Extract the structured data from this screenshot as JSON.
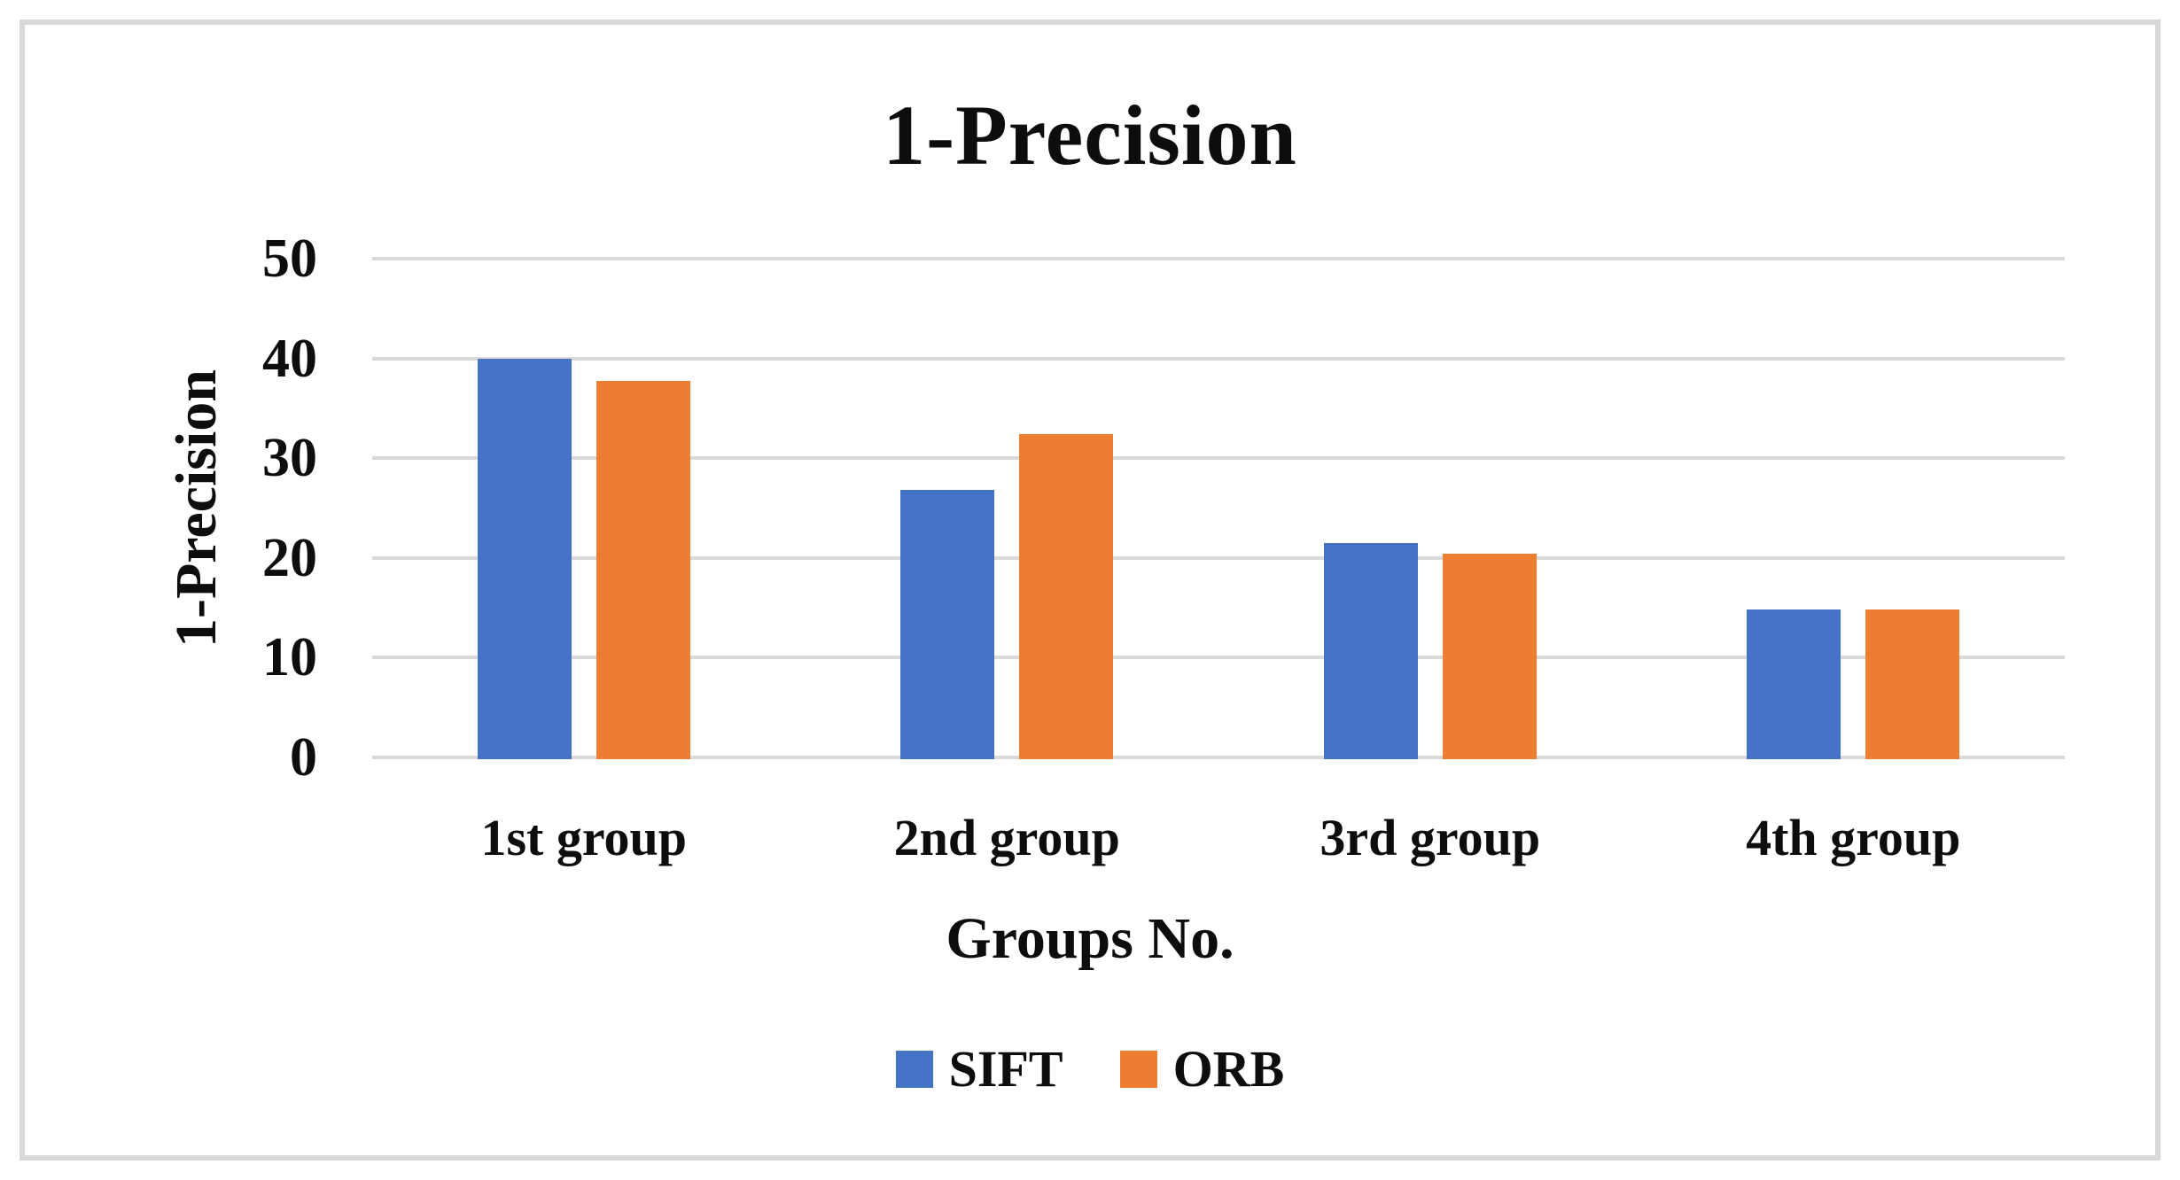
{
  "figure": {
    "border_color": "#d9d9d9",
    "background": "#ffffff"
  },
  "chart_data": {
    "type": "bar",
    "title": "1-Precision",
    "xlabel": "Groups No.",
    "ylabel": "1-Precision",
    "categories": [
      "1st group",
      "2nd group",
      "3rd group",
      "4th group"
    ],
    "series": [
      {
        "name": "SIFT",
        "color": "#4472C4",
        "values": [
          40,
          26.8,
          21.5,
          14.8
        ]
      },
      {
        "name": "ORB",
        "color": "#ED7D31",
        "values": [
          37.7,
          32.4,
          20.4,
          14.8
        ]
      }
    ],
    "ylim": [
      0,
      50
    ],
    "yticks": [
      0,
      10,
      20,
      30,
      40,
      50
    ],
    "grid": true,
    "gridline_color": "#d9d9d9",
    "legend_position": "bottom"
  },
  "legend": {
    "items": [
      {
        "label": "SIFT",
        "color": "#4472C4"
      },
      {
        "label": "ORB",
        "color": "#ED7D31"
      }
    ]
  }
}
